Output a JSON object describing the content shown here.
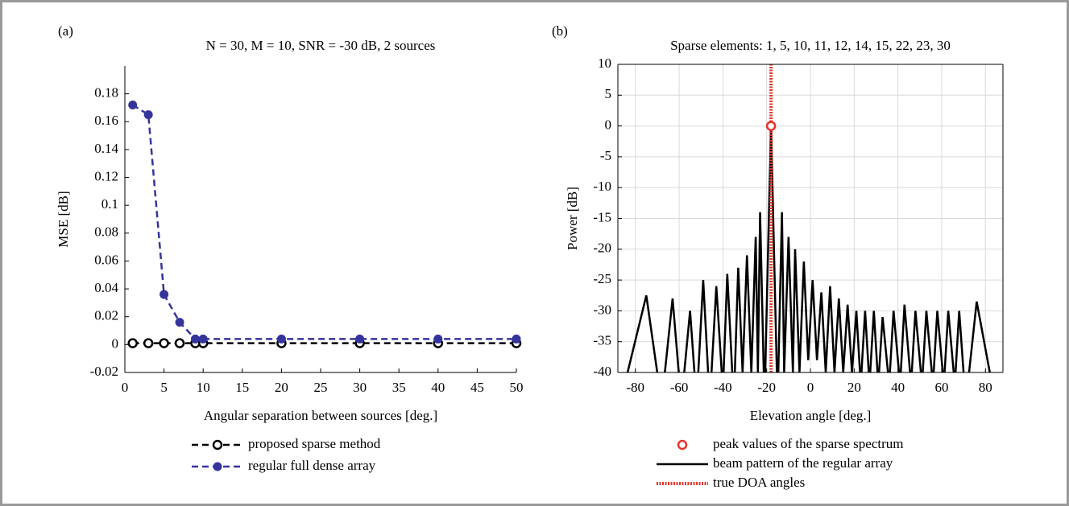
{
  "chart_data": [
    {
      "type": "line",
      "panel_label": "(a)",
      "title": "N = 30, M = 10, SNR = -30 dB, 2 sources",
      "x_label": "Angular separation between sources [deg.]",
      "y_label": "MSE [dB]",
      "x": [
        1,
        3,
        5,
        7,
        9,
        10,
        20,
        30,
        40,
        50
      ],
      "xlim": [
        0,
        50
      ],
      "xticks": [
        0,
        5,
        10,
        15,
        20,
        25,
        30,
        35,
        40,
        45,
        50
      ],
      "ylim": [
        -0.02,
        0.2
      ],
      "yticks": [
        -0.02,
        0,
        0.02,
        0.04,
        0.06,
        0.08,
        0.1,
        0.12,
        0.14,
        0.16,
        0.18
      ],
      "grid": false,
      "box": false,
      "legend": "bottom",
      "series": [
        {
          "name": "proposed sparse method",
          "color": "#000000",
          "line": "dashed",
          "marker": "open-circle",
          "values": [
            0.001,
            0.001,
            0.001,
            0.001,
            0.001,
            0.001,
            0.001,
            0.001,
            0.001,
            0.001
          ]
        },
        {
          "name": "regular full dense array",
          "color": "#34349c",
          "line": "dashed",
          "marker": "circle",
          "values": [
            0.172,
            0.165,
            0.036,
            0.016,
            0.004,
            0.004,
            0.004,
            0.004,
            0.004,
            0.004
          ]
        }
      ]
    },
    {
      "type": "line",
      "panel_label": "(b)",
      "title": "Sparse elements: 1, 5, 10, 11, 12, 14, 15, 22, 23, 30",
      "x_label": "Elevation angle [deg.]",
      "y_label": "Power [dB]",
      "xlim": [
        -88,
        88
      ],
      "xticks": [
        -80,
        -60,
        -40,
        -20,
        0,
        20,
        40,
        60,
        80
      ],
      "ylim": [
        -40,
        10
      ],
      "yticks": [
        -40,
        -35,
        -30,
        -25,
        -20,
        -15,
        -10,
        -5,
        0,
        5,
        10
      ],
      "grid": true,
      "box": true,
      "legend": "bottom",
      "series": [
        {
          "name": "peak values of the sparse spectrum",
          "color": "#e8332a",
          "line": "none",
          "marker": "open-circle",
          "x": [
            -18
          ],
          "values": [
            0
          ]
        },
        {
          "name": "beam pattern of the regular array",
          "color": "#000000",
          "line": "solid",
          "marker": "none",
          "x": [
            -87,
            -75,
            -68,
            -63,
            -59,
            -55,
            -52,
            -49,
            -46,
            -43,
            -40,
            -38,
            -35,
            -33,
            -31,
            -29,
            -27,
            -25,
            -24,
            -23,
            -21,
            -18,
            -15,
            -13,
            -12,
            -10,
            -8,
            -7,
            -5,
            -3,
            -1,
            1,
            3,
            5,
            7,
            9,
            11,
            13,
            15,
            17,
            19,
            21,
            23,
            25,
            27,
            29,
            31,
            33,
            36,
            38,
            41,
            43,
            46,
            48,
            51,
            53,
            56,
            58,
            61,
            63,
            66,
            68,
            71,
            76,
            82,
            84
          ],
          "values": [
            -45,
            -27.5,
            -45,
            -28,
            -45,
            -30,
            -45,
            -25,
            -45,
            -26,
            -43,
            -24,
            -45,
            -23,
            -40,
            -21,
            -40,
            -18,
            -40,
            -14,
            -45,
            0,
            -45,
            -14,
            -40,
            -18,
            -40,
            -20,
            -40,
            -22,
            -38,
            -25,
            -38,
            -27,
            -40,
            -26,
            -40,
            -28,
            -40,
            -29,
            -40,
            -30,
            -42,
            -30,
            -42,
            -30,
            -42,
            -31,
            -42,
            -30,
            -42,
            -29,
            -42,
            -30,
            -42,
            -30,
            -42,
            -30,
            -42,
            -30,
            -42,
            -30,
            -45,
            -28.5,
            -40,
            -45
          ]
        },
        {
          "name": "true DOA angles",
          "color": "#e8332a",
          "line": "dotted",
          "marker": "none",
          "x": [
            -18,
            -18
          ],
          "values": [
            -40,
            10
          ]
        }
      ]
    }
  ]
}
